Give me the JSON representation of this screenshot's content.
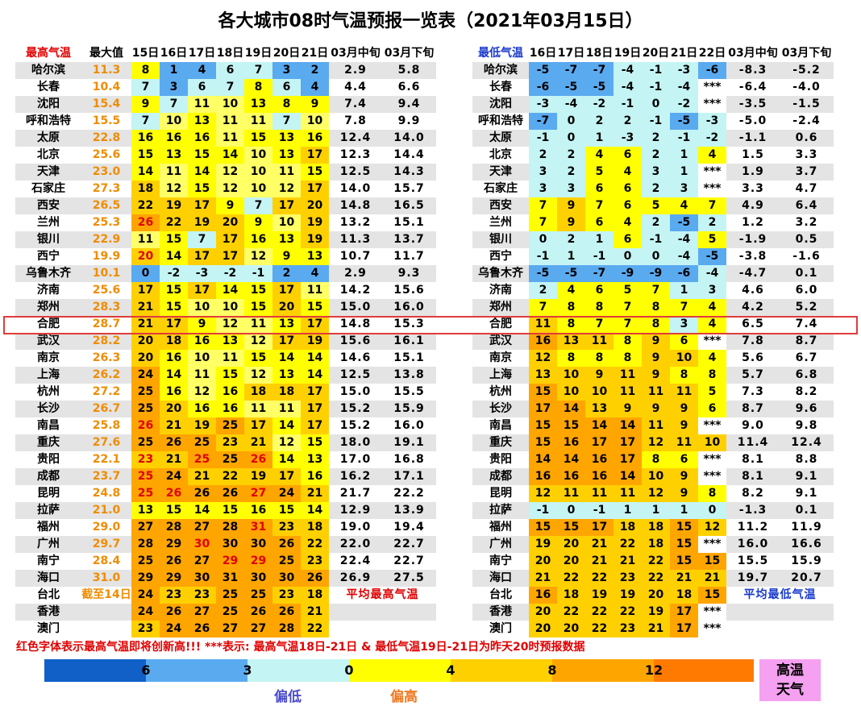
{
  "title": "各大城市08时气温预报一览表（2021年03月15日）",
  "max_table": {
    "headers": [
      "最高气温",
      "最大值",
      "15日",
      "16日",
      "17日",
      "18日",
      "19日",
      "20日",
      "21日",
      "03月中旬",
      "03月下旬"
    ],
    "footer_label": "平均最高气温",
    "rows": [
      [
        "哈尔滨",
        "11.3",
        "8",
        "1",
        "4",
        "6",
        "7",
        "3",
        "2",
        "2.9",
        "5.8"
      ],
      [
        "长春",
        "10.4",
        "7",
        "3",
        "6",
        "7",
        "8",
        "6",
        "4",
        "4.4",
        "6.6"
      ],
      [
        "沈阳",
        "15.4",
        "9",
        "7",
        "11",
        "10",
        "13",
        "8",
        "9",
        "7.4",
        "9.4"
      ],
      [
        "呼和浩特",
        "15.5",
        "7",
        "10",
        "13",
        "11",
        "11",
        "7",
        "10",
        "7.8",
        "9.9"
      ],
      [
        "太原",
        "22.8",
        "16",
        "16",
        "16",
        "11",
        "15",
        "13",
        "16",
        "12.4",
        "14.0"
      ],
      [
        "北京",
        "25.6",
        "15",
        "13",
        "15",
        "14",
        "10",
        "13",
        "17",
        "12.3",
        "14.4"
      ],
      [
        "天津",
        "23.0",
        "14",
        "11",
        "14",
        "12",
        "10",
        "11",
        "15",
        "12.5",
        "14.3"
      ],
      [
        "石家庄",
        "27.3",
        "18",
        "12",
        "15",
        "12",
        "10",
        "12",
        "17",
        "14.0",
        "15.7"
      ],
      [
        "西安",
        "26.5",
        "22",
        "19",
        "17",
        "9",
        "7",
        "17",
        "20",
        "14.8",
        "16.5"
      ],
      [
        "兰州",
        "25.3",
        "26",
        "22",
        "19",
        "20",
        "9",
        "10",
        "19",
        "13.2",
        "15.1"
      ],
      [
        "银川",
        "22.9",
        "11",
        "15",
        "7",
        "17",
        "16",
        "13",
        "19",
        "11.3",
        "13.7"
      ],
      [
        "西宁",
        "19.9",
        "20",
        "14",
        "17",
        "17",
        "12",
        "9",
        "13",
        "10.7",
        "11.7"
      ],
      [
        "乌鲁木齐",
        "10.1",
        "0",
        "-2",
        "-3",
        "-2",
        "-1",
        "2",
        "4",
        "2.9",
        "9.3"
      ],
      [
        "济南",
        "25.6",
        "17",
        "15",
        "17",
        "14",
        "15",
        "17",
        "11",
        "14.2",
        "15.6"
      ],
      [
        "郑州",
        "28.3",
        "21",
        "15",
        "10",
        "10",
        "15",
        "20",
        "15",
        "15.0",
        "16.0"
      ],
      [
        "合肥",
        "28.7",
        "21",
        "17",
        "9",
        "12",
        "11",
        "13",
        "17",
        "14.8",
        "15.3"
      ],
      [
        "武汉",
        "28.2",
        "20",
        "18",
        "16",
        "13",
        "12",
        "17",
        "19",
        "15.6",
        "16.1"
      ],
      [
        "南京",
        "26.3",
        "20",
        "16",
        "10",
        "11",
        "15",
        "14",
        "14",
        "14.6",
        "15.1"
      ],
      [
        "上海",
        "26.2",
        "24",
        "14",
        "11",
        "15",
        "12",
        "13",
        "14",
        "12.5",
        "13.8"
      ],
      [
        "杭州",
        "27.2",
        "25",
        "16",
        "12",
        "16",
        "18",
        "18",
        "17",
        "15.0",
        "15.5"
      ],
      [
        "长沙",
        "26.7",
        "25",
        "20",
        "16",
        "16",
        "11",
        "11",
        "17",
        "15.2",
        "15.9"
      ],
      [
        "南昌",
        "25.8",
        "26",
        "21",
        "19",
        "25",
        "17",
        "14",
        "17",
        "15.2",
        "16.0"
      ],
      [
        "重庆",
        "27.6",
        "25",
        "26",
        "25",
        "23",
        "21",
        "12",
        "15",
        "18.0",
        "19.1"
      ],
      [
        "贵阳",
        "22.1",
        "23",
        "21",
        "25",
        "25",
        "26",
        "14",
        "13",
        "17.0",
        "16.8"
      ],
      [
        "成都",
        "23.7",
        "25",
        "24",
        "21",
        "22",
        "19",
        "17",
        "16",
        "16.2",
        "17.1"
      ],
      [
        "昆明",
        "24.8",
        "25",
        "26",
        "26",
        "26",
        "27",
        "24",
        "21",
        "21.7",
        "22.2"
      ],
      [
        "拉萨",
        "21.0",
        "13",
        "15",
        "14",
        "15",
        "16",
        "15",
        "14",
        "12.9",
        "13.9"
      ],
      [
        "福州",
        "29.0",
        "27",
        "28",
        "27",
        "28",
        "31",
        "23",
        "18",
        "19.0",
        "19.4"
      ],
      [
        "广州",
        "29.7",
        "28",
        "29",
        "30",
        "30",
        "30",
        "26",
        "22",
        "22.0",
        "22.7"
      ],
      [
        "南宁",
        "28.4",
        "25",
        "26",
        "27",
        "29",
        "29",
        "25",
        "23",
        "22.4",
        "22.7"
      ],
      [
        "海口",
        "31.0",
        "29",
        "29",
        "30",
        "31",
        "30",
        "30",
        "26",
        "26.9",
        "27.5"
      ],
      [
        "台北",
        "截至14日",
        "24",
        "23",
        "23",
        "25",
        "25",
        "23",
        "18",
        "",
        ""
      ],
      [
        "香港",
        "",
        "24",
        "26",
        "27",
        "25",
        "26",
        "26",
        "21",
        "",
        ""
      ],
      [
        "澳门",
        "",
        "23",
        "24",
        "26",
        "27",
        "27",
        "28",
        "22",
        "",
        ""
      ]
    ]
  },
  "min_table": {
    "headers": [
      "最低气温",
      "16日",
      "17日",
      "18日",
      "19日",
      "20日",
      "21日",
      "22日",
      "03月中旬",
      "03月下旬"
    ],
    "footer_label": "平均最低气温",
    "rows": [
      [
        "哈尔滨",
        "-5",
        "-7",
        "-7",
        "-4",
        "-1",
        "-3",
        "-6",
        "-8.3",
        "-5.2"
      ],
      [
        "长春",
        "-6",
        "-5",
        "-5",
        "-4",
        "-1",
        "-4",
        "***",
        "-6.4",
        "-4.0"
      ],
      [
        "沈阳",
        "-3",
        "-4",
        "-2",
        "-1",
        "0",
        "-2",
        "***",
        "-3.5",
        "-1.5"
      ],
      [
        "呼和浩特",
        "-7",
        "0",
        "2",
        "2",
        "-1",
        "-5",
        "-3",
        "-5.0",
        "-2.4"
      ],
      [
        "太原",
        "-1",
        "0",
        "1",
        "-3",
        "2",
        "-1",
        "-2",
        "-1.1",
        "0.6"
      ],
      [
        "北京",
        "2",
        "2",
        "4",
        "6",
        "2",
        "1",
        "4",
        "1.5",
        "3.3"
      ],
      [
        "天津",
        "3",
        "2",
        "5",
        "4",
        "3",
        "1",
        "***",
        "1.9",
        "3.7"
      ],
      [
        "石家庄",
        "3",
        "3",
        "6",
        "6",
        "2",
        "3",
        "***",
        "3.3",
        "4.7"
      ],
      [
        "西安",
        "7",
        "9",
        "7",
        "6",
        "5",
        "4",
        "7",
        "4.9",
        "6.4"
      ],
      [
        "兰州",
        "7",
        "9",
        "6",
        "4",
        "2",
        "-5",
        "2",
        "1.2",
        "3.2"
      ],
      [
        "银川",
        "0",
        "2",
        "1",
        "6",
        "-1",
        "-4",
        "5",
        "-1.9",
        "0.5"
      ],
      [
        "西宁",
        "-1",
        "1",
        "-1",
        "0",
        "0",
        "-4",
        "-5",
        "-3.8",
        "-1.6"
      ],
      [
        "乌鲁木齐",
        "-5",
        "-5",
        "-7",
        "-9",
        "-9",
        "-6",
        "-4",
        "-4.7",
        "0.1"
      ],
      [
        "济南",
        "2",
        "4",
        "6",
        "5",
        "7",
        "1",
        "3",
        "4.6",
        "6.0"
      ],
      [
        "郑州",
        "7",
        "8",
        "8",
        "7",
        "8",
        "7",
        "4",
        "4.2",
        "5.2"
      ],
      [
        "合肥",
        "11",
        "8",
        "7",
        "7",
        "8",
        "3",
        "4",
        "6.5",
        "7.4"
      ],
      [
        "武汉",
        "16",
        "13",
        "11",
        "8",
        "9",
        "6",
        "***",
        "7.8",
        "8.7"
      ],
      [
        "南京",
        "12",
        "8",
        "8",
        "8",
        "9",
        "10",
        "4",
        "5.6",
        "6.7"
      ],
      [
        "上海",
        "13",
        "10",
        "9",
        "11",
        "9",
        "8",
        "8",
        "5.7",
        "6.8"
      ],
      [
        "杭州",
        "15",
        "10",
        "10",
        "11",
        "11",
        "11",
        "5",
        "7.3",
        "8.2"
      ],
      [
        "长沙",
        "17",
        "14",
        "13",
        "9",
        "9",
        "9",
        "6",
        "8.7",
        "9.6"
      ],
      [
        "南昌",
        "15",
        "15",
        "14",
        "14",
        "11",
        "9",
        "***",
        "9.0",
        "9.8"
      ],
      [
        "重庆",
        "15",
        "16",
        "17",
        "17",
        "12",
        "11",
        "10",
        "11.4",
        "12.4"
      ],
      [
        "贵阳",
        "14",
        "14",
        "16",
        "17",
        "8",
        "6",
        "***",
        "8.1",
        "8.8"
      ],
      [
        "成都",
        "16",
        "16",
        "16",
        "14",
        "10",
        "9",
        "***",
        "8.1",
        "9.1"
      ],
      [
        "昆明",
        "12",
        "11",
        "11",
        "11",
        "12",
        "9",
        "8",
        "8.2",
        "9.1"
      ],
      [
        "拉萨",
        "-1",
        "0",
        "-1",
        "1",
        "1",
        "1",
        "0",
        "-1.3",
        "0.1"
      ],
      [
        "福州",
        "15",
        "15",
        "17",
        "18",
        "18",
        "15",
        "12",
        "11.2",
        "11.9"
      ],
      [
        "广州",
        "19",
        "20",
        "21",
        "22",
        "18",
        "15",
        "***",
        "16.0",
        "16.6"
      ],
      [
        "南宁",
        "20",
        "20",
        "21",
        "21",
        "22",
        "15",
        "15",
        "15.5",
        "15.9"
      ],
      [
        "海口",
        "21",
        "22",
        "22",
        "23",
        "22",
        "21",
        "21",
        "19.7",
        "20.7"
      ],
      [
        "台北",
        "16",
        "18",
        "19",
        "19",
        "20",
        "18",
        "15",
        "",
        ""
      ],
      [
        "香港",
        "20",
        "22",
        "22",
        "22",
        "19",
        "17",
        "***",
        "",
        ""
      ],
      [
        "澳门",
        "20",
        "20",
        "22",
        "23",
        "21",
        "17",
        "***",
        "",
        ""
      ]
    ]
  },
  "highlight_city": "合肥",
  "footnote": "红色字体表示最高气温即将创新高!!! ***表示: 最高气温18日-21日 & 最低气温19日-21日为昨天20时预报数据",
  "legend": {
    "ticks": [
      "6",
      "3",
      "0",
      "4",
      "8",
      "12"
    ],
    "low_label": "偏低",
    "high_label": "偏高",
    "hot_label_1": "高温",
    "hot_label_2": "天气"
  },
  "red_cells": {
    "兰州": [
      0
    ],
    "西宁": [
      0
    ],
    "南昌": [
      0
    ],
    "贵阳": [
      0,
      2,
      4
    ],
    "成都": [
      0
    ],
    "昆明": [
      0,
      1,
      4
    ],
    "福州": [
      4
    ],
    "广州": [
      2
    ],
    "南宁": [
      3,
      4
    ]
  },
  "colors": {
    "band_gray": "#e4e4e4",
    "highlight_border": "#e03c3c",
    "red_text": "#e00000",
    "max_value_text": "#f08c00",
    "blue_header": "#1a3acc",
    "hot_box": "#f5a0f0"
  }
}
